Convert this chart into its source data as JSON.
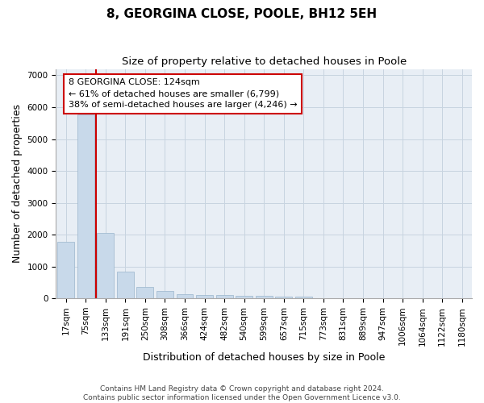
{
  "title1": "8, GEORGINA CLOSE, POOLE, BH12 5EH",
  "title2": "Size of property relative to detached houses in Poole",
  "xlabel": "Distribution of detached houses by size in Poole",
  "ylabel": "Number of detached properties",
  "categories": [
    "17sqm",
    "75sqm",
    "133sqm",
    "191sqm",
    "250sqm",
    "308sqm",
    "366sqm",
    "424sqm",
    "482sqm",
    "540sqm",
    "599sqm",
    "657sqm",
    "715sqm",
    "773sqm",
    "831sqm",
    "889sqm",
    "947sqm",
    "1006sqm",
    "1064sqm",
    "1122sqm",
    "1180sqm"
  ],
  "values": [
    1780,
    5780,
    2060,
    830,
    370,
    220,
    130,
    110,
    100,
    75,
    70,
    65,
    55,
    3,
    3,
    3,
    3,
    3,
    3,
    3,
    3
  ],
  "bar_color": "#c8d9ea",
  "bar_edge_color": "#9ab5cc",
  "grid_color": "#c8d4e0",
  "bg_color": "#e8eef5",
  "red_line_x": 1.5,
  "annotation_line1": "8 GEORGINA CLOSE: 124sqm",
  "annotation_line2": "← 61% of detached houses are smaller (6,799)",
  "annotation_line3": "38% of semi-detached houses are larger (4,246) →",
  "annotation_box_color": "#ffffff",
  "annotation_box_edge": "#cc0000",
  "ylim": [
    0,
    7200
  ],
  "yticks": [
    0,
    1000,
    2000,
    3000,
    4000,
    5000,
    6000,
    7000
  ],
  "footer": "Contains HM Land Registry data © Crown copyright and database right 2024.\nContains public sector information licensed under the Open Government Licence v3.0.",
  "title1_fontsize": 11,
  "title2_fontsize": 9.5,
  "axis_label_fontsize": 9,
  "tick_fontsize": 7.5,
  "annotation_fontsize": 8,
  "footer_fontsize": 6.5
}
